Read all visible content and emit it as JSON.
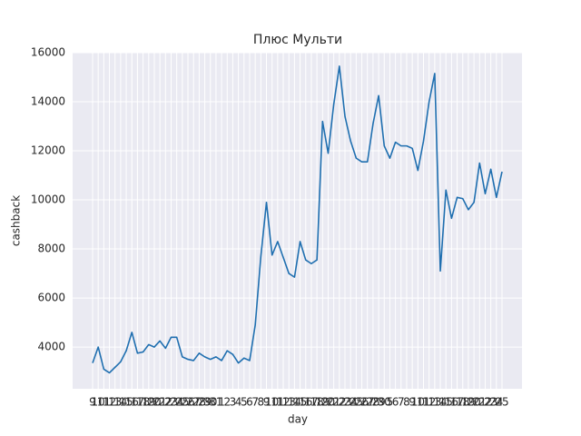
{
  "chart_data": {
    "type": "line",
    "title": "Плюс Мульти",
    "xlabel": "day",
    "ylabel": "cashback",
    "categories": [
      "9",
      "10",
      "11",
      "12",
      "13",
      "14",
      "15",
      "16",
      "17",
      "18",
      "19",
      "20",
      "21",
      "22",
      "23",
      "24",
      "25",
      "26",
      "27",
      "28",
      "29",
      "30",
      "31",
      "1",
      "2",
      "3",
      "4",
      "5",
      "6",
      "7",
      "8",
      "9",
      "10",
      "11",
      "12",
      "13",
      "14",
      "15",
      "16",
      "17",
      "18",
      "19",
      "20",
      "21",
      "22",
      "23",
      "24",
      "25",
      "26",
      "27",
      "28",
      "29",
      "30",
      "5",
      "6",
      "7",
      "8",
      "9",
      "10",
      "11",
      "12",
      "13",
      "14",
      "15",
      "16",
      "17",
      "18",
      "19",
      "20",
      "21",
      "22",
      "23",
      "24",
      "25"
    ],
    "series": [
      {
        "name": "cashback",
        "color": "#1f6fb0",
        "values": [
          3350,
          4000,
          3100,
          2950,
          3175,
          3400,
          3850,
          4600,
          3750,
          3800,
          4100,
          4000,
          4250,
          3950,
          4400,
          4400,
          3600,
          3500,
          3450,
          3750,
          3600,
          3500,
          3600,
          3450,
          3850,
          3700,
          3350,
          3550,
          3450,
          4900,
          7700,
          9900,
          7750,
          8300,
          7650,
          7000,
          6850,
          8300,
          7550,
          7400,
          7550,
          13200,
          11900,
          13900,
          15450,
          13400,
          12400,
          11700,
          11550,
          11550,
          13100,
          14250,
          12200,
          11700,
          12350,
          12200,
          12200,
          12100,
          11200,
          12400,
          14000,
          15150,
          7100,
          10400,
          9250,
          10100,
          10050,
          9600,
          9900,
          11500,
          10250,
          11250,
          10100,
          11150
        ]
      }
    ],
    "ylim": [
      2300,
      16000
    ],
    "yticks": [
      4000,
      6000,
      8000,
      10000,
      12000,
      14000,
      16000
    ],
    "grid": true
  }
}
